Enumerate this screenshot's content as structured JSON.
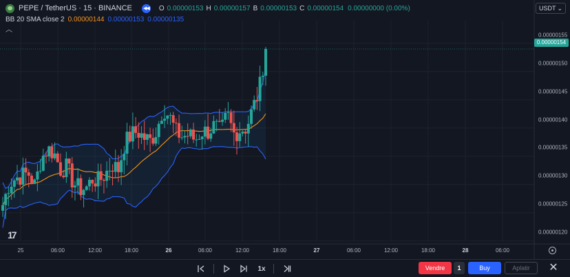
{
  "header": {
    "symbol_title": "PEPE / TetherUS · 15 · BINANCE",
    "ohlc": [
      {
        "key": "O",
        "value": "0.00000153"
      },
      {
        "key": "H",
        "value": "0.00000157"
      },
      {
        "key": "B",
        "value": "0.00000153"
      },
      {
        "key": "C",
        "value": "0.00000154"
      }
    ],
    "change": "0.00000000 (0.00%)",
    "currency": "USDT"
  },
  "indicator": {
    "name": "BB 20 SMA close 2",
    "basis": "0.00000144",
    "upper": "0.00000153",
    "lower": "0.00000135"
  },
  "price_axis": {
    "labels": [
      "0.00000155",
      "0.00000150",
      "0.00000145",
      "0.00000140",
      "0.00000135",
      "0.00000130",
      "0.00000125",
      "0.00000120"
    ],
    "last_price": "0.00000154"
  },
  "time_axis": {
    "labels": [
      "25",
      "06:00",
      "12:00",
      "18:00",
      "26",
      "06:00",
      "12:00",
      "18:00",
      "27",
      "06:00",
      "12:00",
      "18:00",
      "28",
      "06:00"
    ]
  },
  "toolbar": {
    "speed": "1x",
    "sell_label": "Vendre",
    "quantity": "1",
    "buy_label": "Buy",
    "flatten_label": "Aplatir"
  },
  "colors": {
    "up": "#26a69a",
    "down": "#ef5350",
    "bb_band": "#2962ff",
    "bb_basis": "#f7931a",
    "sell": "#f23645",
    "buy": "#2962ff"
  },
  "chart_data": {
    "type": "candlestick",
    "ylim": [
      1.19e-06,
      1.59e-06
    ],
    "y_ticks": [
      1.55e-06,
      1.5e-06,
      1.45e-06,
      1.4e-06,
      1.35e-06,
      1.3e-06,
      1.25e-06,
      1.2e-06
    ],
    "x_ticks": [
      "25",
      "06:00",
      "12:00",
      "18:00",
      "26",
      "06:00",
      "12:00",
      "18:00",
      "27",
      "06:00",
      "12:00",
      "18:00",
      "28",
      "06:00"
    ],
    "last_price": 1.54e-06,
    "indicator": "BB 20 SMA close 2",
    "ohlc_anchors": [
      1.264e-06,
      1.302e-06,
      1.311e-06,
      1.316e-06,
      1.32e-06,
      1.298e-06,
      1.346e-06,
      1.363e-06,
      1.356e-06,
      1.327e-06,
      1.331e-06,
      1.303e-06,
      1.292e-06,
      1.294e-06,
      1.31e-06,
      1.306e-06,
      1.319e-06,
      1.336e-06,
      1.326e-06,
      1.373e-06,
      1.388e-06,
      1.394e-06,
      1.383e-06,
      1.377e-06,
      1.396e-06,
      1.436e-06,
      1.42e-06,
      1.393e-06,
      1.385e-06,
      1.388e-06,
      1.379e-06,
      1.394e-06,
      1.394e-06,
      1.404e-06,
      1.392e-06,
      1.424e-06,
      1.39e-06,
      1.397e-06,
      1.401e-06,
      1.435e-06,
      1.467e-06,
      1.545e-06
    ]
  }
}
